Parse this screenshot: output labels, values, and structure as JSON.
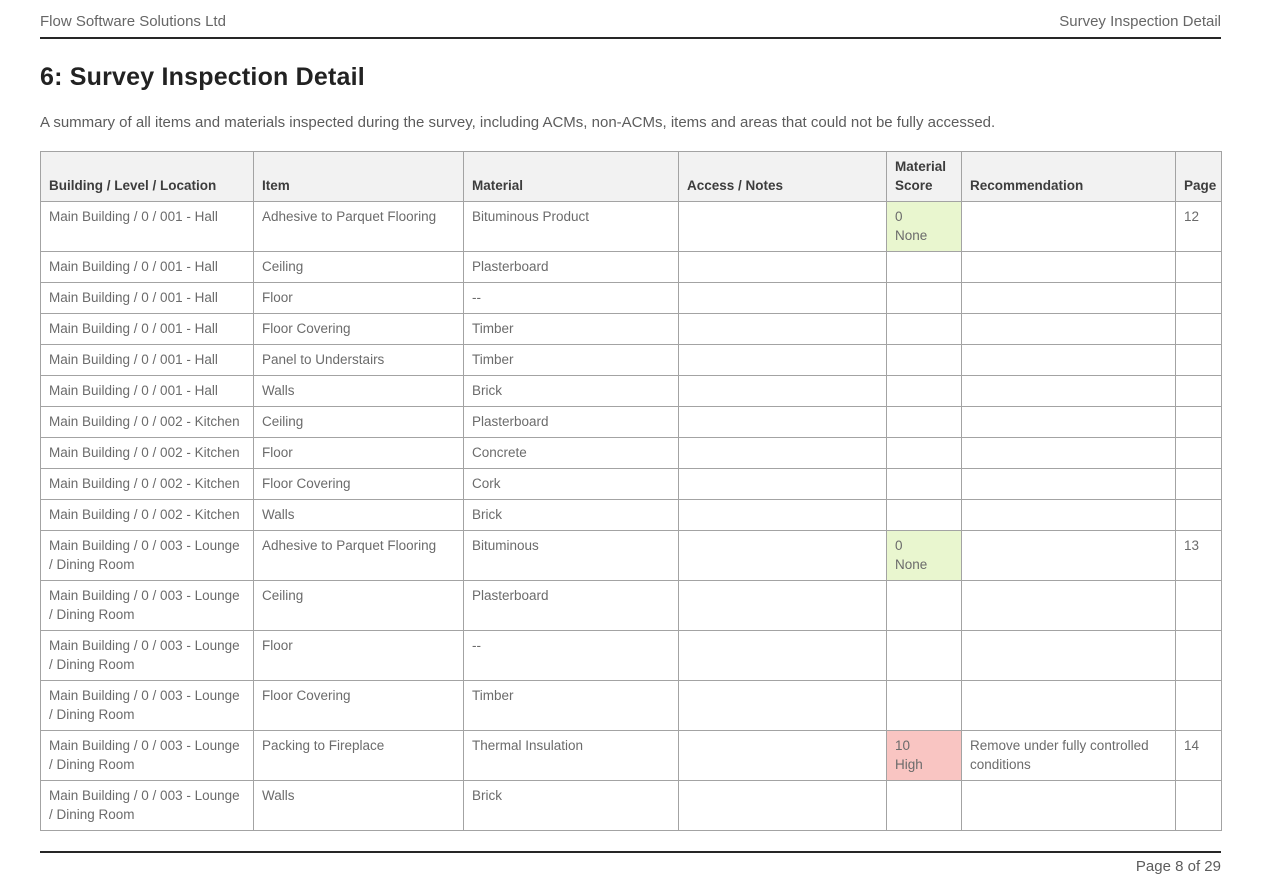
{
  "header": {
    "left": "Flow Software Solutions Ltd",
    "right": "Survey Inspection Detail"
  },
  "title": "6: Survey Inspection Detail",
  "subtitle": "A summary of all items and materials inspected during the survey, including ACMs, non-ACMs, items and areas that could not be fully accessed.",
  "table": {
    "columns": [
      {
        "key": "location",
        "label": "Building / Level / Location"
      },
      {
        "key": "item",
        "label": "Item"
      },
      {
        "key": "material",
        "label": "Material"
      },
      {
        "key": "access",
        "label": "Access / Notes"
      },
      {
        "key": "score",
        "label": "Material Score"
      },
      {
        "key": "recommendation",
        "label": "Recommendation"
      },
      {
        "key": "page",
        "label": "Page"
      }
    ],
    "rows": [
      {
        "location": "Main Building / 0 / 001 - Hall",
        "item": "Adhesive to Parquet Flooring",
        "material": "Bituminous Product",
        "access": "",
        "score": "0",
        "score_label": "None",
        "score_class": "none",
        "recommendation": "",
        "page": "12"
      },
      {
        "location": "Main Building / 0 / 001 - Hall",
        "item": "Ceiling",
        "material": "Plasterboard",
        "access": "",
        "score": "",
        "score_label": "",
        "score_class": "",
        "recommendation": "",
        "page": ""
      },
      {
        "location": "Main Building / 0 / 001 - Hall",
        "item": "Floor",
        "material": "--",
        "access": "",
        "score": "",
        "score_label": "",
        "score_class": "",
        "recommendation": "",
        "page": ""
      },
      {
        "location": "Main Building / 0 / 001 - Hall",
        "item": "Floor Covering",
        "material": "Timber",
        "access": "",
        "score": "",
        "score_label": "",
        "score_class": "",
        "recommendation": "",
        "page": ""
      },
      {
        "location": "Main Building / 0 / 001 - Hall",
        "item": "Panel to Understairs",
        "material": "Timber",
        "access": "",
        "score": "",
        "score_label": "",
        "score_class": "",
        "recommendation": "",
        "page": ""
      },
      {
        "location": "Main Building / 0 / 001 - Hall",
        "item": "Walls",
        "material": "Brick",
        "access": "",
        "score": "",
        "score_label": "",
        "score_class": "",
        "recommendation": "",
        "page": ""
      },
      {
        "location": "Main Building / 0 / 002 - Kitchen",
        "item": "Ceiling",
        "material": "Plasterboard",
        "access": "",
        "score": "",
        "score_label": "",
        "score_class": "",
        "recommendation": "",
        "page": ""
      },
      {
        "location": "Main Building / 0 / 002 - Kitchen",
        "item": "Floor",
        "material": "Concrete",
        "access": "",
        "score": "",
        "score_label": "",
        "score_class": "",
        "recommendation": "",
        "page": ""
      },
      {
        "location": "Main Building / 0 / 002 - Kitchen",
        "item": "Floor Covering",
        "material": "Cork",
        "access": "",
        "score": "",
        "score_label": "",
        "score_class": "",
        "recommendation": "",
        "page": ""
      },
      {
        "location": "Main Building / 0 / 002 - Kitchen",
        "item": "Walls",
        "material": "Brick",
        "access": "",
        "score": "",
        "score_label": "",
        "score_class": "",
        "recommendation": "",
        "page": ""
      },
      {
        "location": "Main Building / 0 / 003 - Lounge / Dining Room",
        "item": "Adhesive to Parquet Flooring",
        "material": "Bituminous",
        "access": "",
        "score": "0",
        "score_label": "None",
        "score_class": "none",
        "recommendation": "",
        "page": "13"
      },
      {
        "location": "Main Building / 0 / 003 - Lounge / Dining Room",
        "item": "Ceiling",
        "material": "Plasterboard",
        "access": "",
        "score": "",
        "score_label": "",
        "score_class": "",
        "recommendation": "",
        "page": ""
      },
      {
        "location": "Main Building / 0 / 003 - Lounge / Dining Room",
        "item": "Floor",
        "material": "--",
        "access": "",
        "score": "",
        "score_label": "",
        "score_class": "",
        "recommendation": "",
        "page": ""
      },
      {
        "location": "Main Building / 0 / 003 - Lounge / Dining Room",
        "item": "Floor Covering",
        "material": "Timber",
        "access": "",
        "score": "",
        "score_label": "",
        "score_class": "",
        "recommendation": "",
        "page": ""
      },
      {
        "location": "Main Building / 0 / 003 - Lounge / Dining Room",
        "item": "Packing to Fireplace",
        "material": "Thermal Insulation",
        "access": "",
        "score": "10",
        "score_label": "High",
        "score_class": "high",
        "recommendation": "Remove under fully controlled conditions",
        "page": "14"
      },
      {
        "location": "Main Building / 0 / 003 - Lounge / Dining Room",
        "item": "Walls",
        "material": "Brick",
        "access": "",
        "score": "",
        "score_label": "",
        "score_class": "",
        "recommendation": "",
        "page": ""
      }
    ]
  },
  "footer": {
    "text": "Page 8 of 29"
  },
  "colors": {
    "score_none_bg": "#e9f6cf",
    "score_high_bg": "#f9c5c2",
    "rule_color": "#262626"
  }
}
